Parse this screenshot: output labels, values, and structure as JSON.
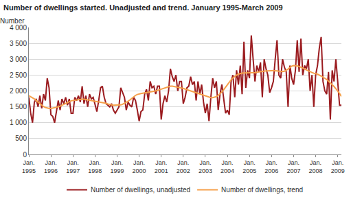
{
  "chart_data": {
    "type": "line",
    "title": "Number of dwellings started. Unadjusted and trend. January 1995-March 2009",
    "y_label": "Number",
    "categories": [
      "Jan. 1995",
      null,
      null,
      null,
      null,
      null,
      null,
      null,
      null,
      null,
      null,
      null,
      "Jan. 1996",
      null,
      null,
      null,
      null,
      null,
      null,
      null,
      null,
      null,
      null,
      null,
      "Jan. 1997",
      null,
      null,
      null,
      null,
      null,
      null,
      null,
      null,
      null,
      null,
      null,
      "Jan. 1998",
      null,
      null,
      null,
      null,
      null,
      null,
      null,
      null,
      null,
      null,
      null,
      "Jan. 1999",
      null,
      null,
      null,
      null,
      null,
      null,
      null,
      null,
      null,
      null,
      null,
      "Jan. 2000",
      null,
      null,
      null,
      null,
      null,
      null,
      null,
      null,
      null,
      null,
      null,
      "Jan. 2001",
      null,
      null,
      null,
      null,
      null,
      null,
      null,
      null,
      null,
      null,
      null,
      "Jan. 2002",
      null,
      null,
      null,
      null,
      null,
      null,
      null,
      null,
      null,
      null,
      null,
      "Jan. 2003",
      null,
      null,
      null,
      null,
      null,
      null,
      null,
      null,
      null,
      null,
      null,
      "Jan. 2004",
      null,
      null,
      null,
      null,
      null,
      null,
      null,
      null,
      null,
      null,
      null,
      "Jan. 2005",
      null,
      null,
      null,
      null,
      null,
      null,
      null,
      null,
      null,
      null,
      null,
      "Jan. 2006",
      null,
      null,
      null,
      null,
      null,
      null,
      null,
      null,
      null,
      null,
      null,
      "Jan. 2007",
      null,
      null,
      null,
      null,
      null,
      null,
      null,
      null,
      null,
      null,
      null,
      "Jan. 2008",
      null,
      null,
      null,
      null,
      null,
      null,
      null,
      null,
      null,
      null,
      null,
      "Jan. 2009",
      null,
      null
    ],
    "series": [
      {
        "name": "Number of dwellings, unadjusted",
        "color": "#9b1c20",
        "values": [
          1800,
          1300,
          1000,
          1650,
          1750,
          1500,
          1850,
          1450,
          1900,
          1700,
          2400,
          2100,
          1250,
          1200,
          1000,
          1350,
          1700,
          1400,
          1750,
          1600,
          1800,
          1550,
          1750,
          1300,
          1300,
          1800,
          1700,
          1850,
          1650,
          2150,
          1600,
          1850,
          1500,
          1900,
          1750,
          1800,
          1550,
          1350,
          1700,
          2100,
          2150,
          1800,
          1600,
          1550,
          1500,
          1600,
          1400,
          1300,
          1400,
          1500,
          2100,
          1950,
          1800,
          1400,
          1650,
          1550,
          1500,
          1800,
          1700,
          1400,
          1050,
          1350,
          1400,
          1900,
          2050,
          1700,
          2300,
          2100,
          2150,
          1900,
          2150,
          2150,
          1100,
          1600,
          1850,
          1650,
          2000,
          2700,
          2450,
          2300,
          2500,
          2000,
          2300,
          2300,
          1600,
          1800,
          2100,
          2150,
          2450,
          2200,
          2300,
          1700,
          2300,
          1900,
          2200,
          1650,
          1300,
          1600,
          1050,
          1800,
          2400,
          2100,
          2300,
          1400,
          1900,
          2200,
          1800,
          1300,
          1400,
          1250,
          2300,
          2500,
          1800,
          2650,
          2200,
          2800,
          1900,
          3550,
          2100,
          2650,
          2400,
          3750,
          3000,
          2300,
          2800,
          2600,
          2900,
          1800,
          3000,
          2700,
          2500,
          1950,
          2100,
          2300,
          3000,
          3600,
          2500,
          2400,
          3000,
          2750,
          2600,
          1500,
          2800,
          2400,
          2200,
          2650,
          3600,
          2600,
          3650,
          2500,
          2800,
          2700,
          3000,
          2000,
          2500,
          1500,
          2500,
          2800,
          3350,
          3700,
          2300,
          2000,
          1900,
          2600,
          1100,
          2650,
          2300,
          3000,
          2300,
          1550,
          1550
        ]
      },
      {
        "name": "Number of dwellings, trend",
        "color": "#f5a04a",
        "values": [
          1850,
          1820,
          1790,
          1750,
          1700,
          1650,
          1600,
          1550,
          1510,
          1480,
          1460,
          1450,
          1450,
          1460,
          1470,
          1480,
          1500,
          1520,
          1550,
          1580,
          1610,
          1640,
          1670,
          1690,
          1700,
          1710,
          1720,
          1730,
          1740,
          1740,
          1740,
          1730,
          1720,
          1710,
          1700,
          1690,
          1680,
          1670,
          1660,
          1650,
          1640,
          1630,
          1610,
          1590,
          1570,
          1560,
          1550,
          1550,
          1550,
          1550,
          1560,
          1580,
          1610,
          1640,
          1680,
          1720,
          1770,
          1820,
          1860,
          1890,
          1910,
          1920,
          1930,
          1940,
          1950,
          1950,
          1960,
          1970,
          1980,
          2000,
          2020,
          2040,
          2060,
          2080,
          2100,
          2120,
          2140,
          2150,
          2150,
          2140,
          2130,
          2120,
          2110,
          2100,
          2080,
          2060,
          2040,
          2020,
          2000,
          1980,
          1960,
          1940,
          1920,
          1900,
          1880,
          1860,
          1840,
          1820,
          1800,
          1790,
          1790,
          1800,
          1820,
          1860,
          1910,
          1970,
          2040,
          2120,
          2200,
          2280,
          2350,
          2410,
          2460,
          2500,
          2530,
          2550,
          2560,
          2570,
          2570,
          2570,
          2570,
          2570,
          2570,
          2580,
          2590,
          2600,
          2610,
          2620,
          2620,
          2630,
          2630,
          2640,
          2640,
          2640,
          2640,
          2630,
          2620,
          2610,
          2610,
          2620,
          2650,
          2690,
          2740,
          2780,
          2800,
          2800,
          2790,
          2770,
          2750,
          2720,
          2690,
          2660,
          2630,
          2600,
          2580,
          2560,
          2550,
          2530,
          2500,
          2470,
          2440,
          2400,
          2360,
          2310,
          2260,
          2200,
          2140,
          2070,
          2000,
          1920,
          1830
        ]
      }
    ],
    "ylim": [
      0,
      4000
    ],
    "yticks": [
      0,
      500,
      {
        "value": 1000,
        "label": "1 000"
      },
      {
        "value": 1500,
        "label": "1 500"
      },
      {
        "value": 2000,
        "label": "2 000"
      },
      {
        "value": 2500,
        "label": "2 500"
      },
      {
        "value": 3000,
        "label": "3 000"
      },
      {
        "value": 3500,
        "label": "3 500"
      },
      {
        "value": 4000,
        "label": "4 000"
      }
    ],
    "grid": true,
    "legend": "bottom"
  }
}
